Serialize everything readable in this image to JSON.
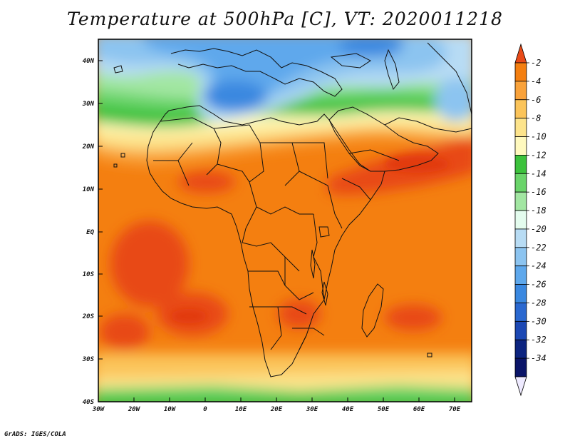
{
  "title": "Temperature at 500hPa [C], VT: 2020011218",
  "credit": "GrADS: IGES/COLA",
  "map": {
    "lon_labels": [
      "30W",
      "20W",
      "10W",
      "0",
      "10E",
      "20E",
      "30E",
      "40E",
      "50E",
      "60E",
      "70E"
    ],
    "lat_labels": [
      "40N",
      "30N",
      "20N",
      "10N",
      "EQ",
      "10S",
      "20S",
      "30S",
      "40S"
    ]
  },
  "colorbar": {
    "levels": [
      "-2",
      "-4",
      "-6",
      "-8",
      "-10",
      "-12",
      "-14",
      "-16",
      "-18",
      "-20",
      "-22",
      "-24",
      "-26",
      "-28",
      "-30",
      "-32",
      "-34"
    ],
    "colors": [
      "#e84a18",
      "#f47f10",
      "#f9a23a",
      "#fbc45a",
      "#fde48c",
      "#fff9be",
      "#3cc23c",
      "#6ad46a",
      "#a2e6a2",
      "#e4fcee",
      "#b8dcf4",
      "#8cc4f0",
      "#5ea8ec",
      "#3a88e0",
      "#2a68d0",
      "#1c48b4",
      "#0c2480",
      "#0a1468",
      "#eeeaff"
    ]
  }
}
